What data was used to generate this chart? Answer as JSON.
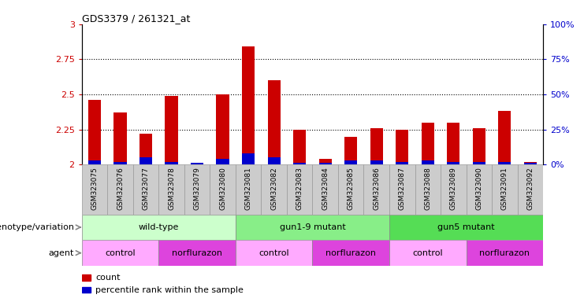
{
  "title": "GDS3379 / 261321_at",
  "samples": [
    "GSM323075",
    "GSM323076",
    "GSM323077",
    "GSM323078",
    "GSM323079",
    "GSM323080",
    "GSM323081",
    "GSM323082",
    "GSM323083",
    "GSM323084",
    "GSM323085",
    "GSM323086",
    "GSM323087",
    "GSM323088",
    "GSM323089",
    "GSM323090",
    "GSM323091",
    "GSM323092"
  ],
  "counts": [
    2.46,
    2.37,
    2.22,
    2.49,
    2.0,
    2.5,
    2.84,
    2.6,
    2.25,
    2.04,
    2.2,
    2.26,
    2.25,
    2.3,
    2.3,
    2.26,
    2.38,
    2.02
  ],
  "percentile_ranks": [
    3,
    2,
    5,
    2,
    1,
    4,
    8,
    5,
    1,
    1,
    3,
    3,
    2,
    3,
    2,
    2,
    2,
    1
  ],
  "ylim_left": [
    2.0,
    3.0
  ],
  "ylim_right": [
    0,
    100
  ],
  "yticks_left": [
    2.0,
    2.25,
    2.5,
    2.75,
    3.0
  ],
  "ytick_labels_left": [
    "2",
    "2.25",
    "2.5",
    "2.75",
    "3"
  ],
  "yticks_right": [
    0,
    25,
    50,
    75,
    100
  ],
  "ytick_labels_right": [
    "0%",
    "25%",
    "50%",
    "75%",
    "100%"
  ],
  "grid_values": [
    2.25,
    2.5,
    2.75
  ],
  "genotype_groups": [
    {
      "label": "wild-type",
      "start": 0,
      "end": 6,
      "color": "#ccffcc"
    },
    {
      "label": "gun1-9 mutant",
      "start": 6,
      "end": 12,
      "color": "#88ee88"
    },
    {
      "label": "gun5 mutant",
      "start": 12,
      "end": 18,
      "color": "#55dd55"
    }
  ],
  "agent_groups": [
    {
      "label": "control",
      "start": 0,
      "end": 3,
      "color": "#ffaaff"
    },
    {
      "label": "norflurazon",
      "start": 3,
      "end": 6,
      "color": "#dd44dd"
    },
    {
      "label": "control",
      "start": 6,
      "end": 9,
      "color": "#ffaaff"
    },
    {
      "label": "norflurazon",
      "start": 9,
      "end": 12,
      "color": "#dd44dd"
    },
    {
      "label": "control",
      "start": 12,
      "end": 15,
      "color": "#ffaaff"
    },
    {
      "label": "norflurazon",
      "start": 15,
      "end": 18,
      "color": "#dd44dd"
    }
  ],
  "bar_color_red": "#cc0000",
  "bar_color_blue": "#0000cc",
  "bar_width": 0.5,
  "tick_color_left": "#cc0000",
  "tick_color_right": "#0000cc",
  "legend_count_label": "count",
  "legend_pct_label": "percentile rank within the sample",
  "genotype_label": "genotype/variation",
  "agent_label": "agent",
  "xticklabel_bg": "#cccccc",
  "xticklabel_border": "#999999"
}
